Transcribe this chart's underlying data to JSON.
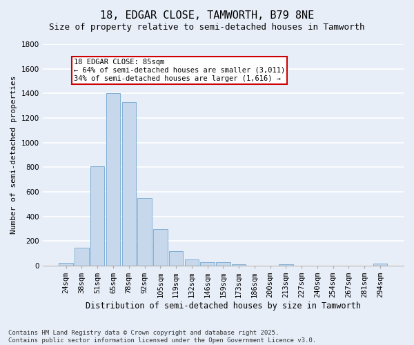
{
  "title": "18, EDGAR CLOSE, TAMWORTH, B79 8NE",
  "subtitle": "Size of property relative to semi-detached houses in Tamworth",
  "xlabel": "Distribution of semi-detached houses by size in Tamworth",
  "ylabel": "Number of semi-detached properties",
  "footnote": "Contains HM Land Registry data © Crown copyright and database right 2025.\nContains public sector information licensed under the Open Government Licence v3.0.",
  "bar_labels": [
    "24sqm",
    "38sqm",
    "51sqm",
    "65sqm",
    "78sqm",
    "92sqm",
    "105sqm",
    "119sqm",
    "132sqm",
    "146sqm",
    "159sqm",
    "173sqm",
    "186sqm",
    "200sqm",
    "213sqm",
    "227sqm",
    "240sqm",
    "254sqm",
    "267sqm",
    "281sqm",
    "294sqm"
  ],
  "bar_values": [
    20,
    145,
    805,
    1400,
    1330,
    550,
    295,
    120,
    50,
    25,
    25,
    10,
    0,
    0,
    10,
    0,
    0,
    0,
    0,
    0,
    15
  ],
  "bar_color": "#c8d8ec",
  "bar_edge_color": "#7fafd4",
  "annotation_title": "18 EDGAR CLOSE: 85sqm",
  "annotation_line1": "← 64% of semi-detached houses are smaller (3,011)",
  "annotation_line2": "34% of semi-detached houses are larger (1,616) →",
  "annotation_box_facecolor": "#ffffff",
  "annotation_box_edgecolor": "#cc0000",
  "background_color": "#e8eef8",
  "plot_bg_color": "#e8eef8",
  "grid_color": "#ffffff",
  "ylim": [
    0,
    1800
  ],
  "yticks": [
    0,
    200,
    400,
    600,
    800,
    1000,
    1200,
    1400,
    1600,
    1800
  ],
  "title_fontsize": 11,
  "subtitle_fontsize": 9,
  "xlabel_fontsize": 8.5,
  "ylabel_fontsize": 8,
  "tick_fontsize": 7.5,
  "annotation_fontsize": 7.5,
  "footnote_fontsize": 6.5
}
